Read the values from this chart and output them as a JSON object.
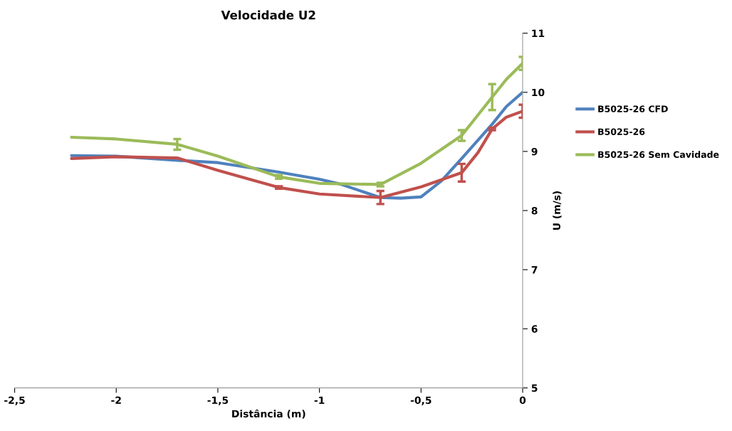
{
  "chart_data": {
    "type": "line",
    "title": "Velocidade U2",
    "xlabel": "Distância (m)",
    "ylabel": "U (m/s)",
    "xlim": [
      -2.5,
      0
    ],
    "xticks": [
      {
        "value": -2.5,
        "label": "-2,5"
      },
      {
        "value": -2,
        "label": "-2"
      },
      {
        "value": -1.5,
        "label": "-1,5"
      },
      {
        "value": -1,
        "label": "-1"
      },
      {
        "value": -0.5,
        "label": "-0,5"
      },
      {
        "value": 0,
        "label": "0"
      }
    ],
    "ylim": [
      5,
      11
    ],
    "yticks": [
      5,
      6,
      7,
      8,
      9,
      10,
      11
    ],
    "legend": "right",
    "line_style": "solid",
    "series": [
      {
        "name": "B5025-26 CFD",
        "color": "#4f81bd",
        "x": [
          -2.22,
          -2.0,
          -1.7,
          -1.5,
          -1.2,
          -1.0,
          -0.9,
          -0.7,
          -0.6,
          -0.5,
          -0.4,
          -0.3,
          -0.15,
          -0.08,
          0
        ],
        "values": [
          8.93,
          8.92,
          8.85,
          8.81,
          8.65,
          8.53,
          8.45,
          8.22,
          8.21,
          8.23,
          8.5,
          8.88,
          9.46,
          9.76,
          10.0
        ]
      },
      {
        "name": "B5025-26",
        "color": "#c0504d",
        "x": [
          -2.22,
          -2.0,
          -1.7,
          -1.5,
          -1.2,
          -1.0,
          -0.7,
          -0.5,
          -0.3,
          -0.22,
          -0.15,
          -0.08,
          0
        ],
        "values": [
          8.88,
          8.91,
          8.89,
          8.68,
          8.39,
          8.28,
          8.22,
          8.4,
          8.64,
          8.98,
          9.38,
          9.58,
          9.68
        ],
        "errors": [
          null,
          null,
          null,
          null,
          0.02,
          null,
          0.11,
          null,
          0.15,
          null,
          0.02,
          null,
          0.11
        ]
      },
      {
        "name": "B5025-26 Sem Cavidade",
        "color": "#9bbb59",
        "x": [
          -2.22,
          -2.0,
          -1.7,
          -1.5,
          -1.2,
          -1.0,
          -0.7,
          -0.5,
          -0.3,
          -0.15,
          -0.08,
          0
        ],
        "values": [
          9.24,
          9.21,
          9.12,
          8.92,
          8.57,
          8.46,
          8.44,
          8.8,
          9.27,
          9.92,
          10.22,
          10.49
        ],
        "errors": [
          null,
          null,
          0.09,
          null,
          0.03,
          null,
          0.03,
          null,
          0.09,
          0.22,
          null,
          0.11
        ]
      }
    ]
  }
}
